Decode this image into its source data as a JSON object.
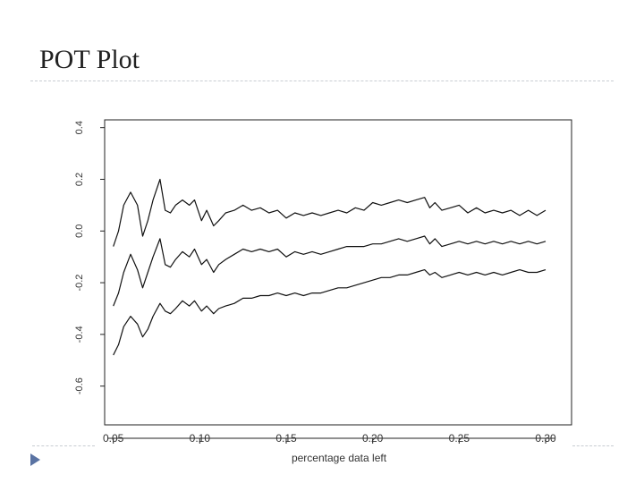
{
  "slide": {
    "title": "POT Plot"
  },
  "chart_data": {
    "type": "line",
    "title": "",
    "xlabel": "percentage data left",
    "ylabel": "",
    "xlim": [
      0.045,
      0.315
    ],
    "ylim": [
      -0.75,
      0.43
    ],
    "x_ticks": [
      0.05,
      0.1,
      0.15,
      0.2,
      0.25,
      0.3
    ],
    "x_tick_labels": [
      "0.05",
      "0.10",
      "0.15",
      "0.20",
      "0.25",
      "0.30"
    ],
    "y_ticks": [
      0.4,
      0.2,
      0.0,
      -0.2,
      -0.4,
      -0.6
    ],
    "y_tick_labels": [
      "0.4",
      "0.2",
      "0.0",
      "-0.2",
      "-0.4",
      "-0.6"
    ],
    "grid": false,
    "legend": "none",
    "line_color": "#111111",
    "x": [
      0.05,
      0.053,
      0.056,
      0.06,
      0.064,
      0.067,
      0.07,
      0.073,
      0.077,
      0.08,
      0.083,
      0.086,
      0.09,
      0.094,
      0.097,
      0.101,
      0.104,
      0.108,
      0.111,
      0.115,
      0.12,
      0.125,
      0.13,
      0.135,
      0.14,
      0.145,
      0.15,
      0.155,
      0.16,
      0.165,
      0.17,
      0.175,
      0.18,
      0.185,
      0.19,
      0.195,
      0.2,
      0.205,
      0.21,
      0.215,
      0.22,
      0.225,
      0.23,
      0.233,
      0.236,
      0.24,
      0.245,
      0.25,
      0.255,
      0.26,
      0.265,
      0.27,
      0.275,
      0.28,
      0.285,
      0.29,
      0.295,
      0.3
    ],
    "series": [
      {
        "values": [
          -0.06,
          0.0,
          0.1,
          0.15,
          0.1,
          -0.02,
          0.04,
          0.12,
          0.2,
          0.08,
          0.07,
          0.1,
          0.12,
          0.1,
          0.12,
          0.04,
          0.08,
          0.02,
          0.04,
          0.07,
          0.08,
          0.1,
          0.08,
          0.09,
          0.07,
          0.08,
          0.05,
          0.07,
          0.06,
          0.07,
          0.06,
          0.07,
          0.08,
          0.07,
          0.09,
          0.08,
          0.11,
          0.1,
          0.11,
          0.12,
          0.11,
          0.12,
          0.13,
          0.09,
          0.11,
          0.08,
          0.09,
          0.1,
          0.07,
          0.09,
          0.07,
          0.08,
          0.07,
          0.08,
          0.06,
          0.08,
          0.06,
          0.08
        ]
      },
      {
        "values": [
          -0.29,
          -0.24,
          -0.16,
          -0.09,
          -0.15,
          -0.22,
          -0.16,
          -0.1,
          -0.03,
          -0.13,
          -0.14,
          -0.11,
          -0.08,
          -0.1,
          -0.07,
          -0.13,
          -0.11,
          -0.16,
          -0.13,
          -0.11,
          -0.09,
          -0.07,
          -0.08,
          -0.07,
          -0.08,
          -0.07,
          -0.1,
          -0.08,
          -0.09,
          -0.08,
          -0.09,
          -0.08,
          -0.07,
          -0.06,
          -0.06,
          -0.06,
          -0.05,
          -0.05,
          -0.04,
          -0.03,
          -0.04,
          -0.03,
          -0.02,
          -0.05,
          -0.03,
          -0.06,
          -0.05,
          -0.04,
          -0.05,
          -0.04,
          -0.05,
          -0.04,
          -0.05,
          -0.04,
          -0.05,
          -0.04,
          -0.05,
          -0.04
        ]
      },
      {
        "values": [
          -0.48,
          -0.44,
          -0.37,
          -0.33,
          -0.36,
          -0.41,
          -0.38,
          -0.33,
          -0.28,
          -0.31,
          -0.32,
          -0.3,
          -0.27,
          -0.29,
          -0.27,
          -0.31,
          -0.29,
          -0.32,
          -0.3,
          -0.29,
          -0.28,
          -0.26,
          -0.26,
          -0.25,
          -0.25,
          -0.24,
          -0.25,
          -0.24,
          -0.25,
          -0.24,
          -0.24,
          -0.23,
          -0.22,
          -0.22,
          -0.21,
          -0.2,
          -0.19,
          -0.18,
          -0.18,
          -0.17,
          -0.17,
          -0.16,
          -0.15,
          -0.17,
          -0.16,
          -0.18,
          -0.17,
          -0.16,
          -0.17,
          -0.16,
          -0.17,
          -0.16,
          -0.17,
          -0.16,
          -0.15,
          -0.16,
          -0.16,
          -0.15
        ]
      }
    ]
  }
}
